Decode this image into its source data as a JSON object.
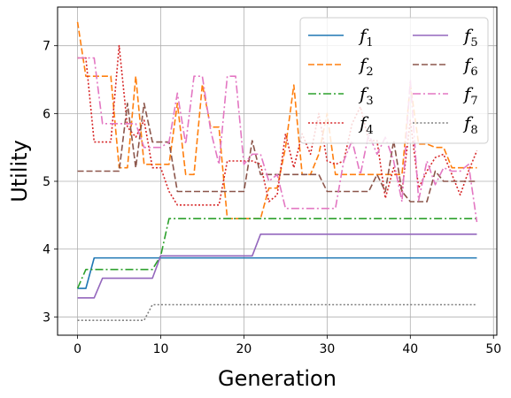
{
  "chart_data": {
    "type": "line",
    "title": "",
    "xlabel": "Generation",
    "ylabel": "Utility",
    "xlim": [
      -2.4,
      50.4
    ],
    "ylim": [
      2.73,
      7.57
    ],
    "xticks": [
      0,
      10,
      20,
      30,
      40,
      50
    ],
    "yticks": [
      3,
      4,
      5,
      6,
      7
    ],
    "grid": true,
    "legend": {
      "placement": "top-right",
      "columns": 2
    },
    "series": [
      {
        "name": "f",
        "sub": "1",
        "color": "#1f77b4",
        "dash": "solid",
        "points": [
          [
            0,
            3.42
          ],
          [
            1,
            3.42
          ],
          [
            2,
            3.87
          ],
          [
            48,
            3.87
          ]
        ]
      },
      {
        "name": "f",
        "sub": "2",
        "color": "#ff7f0e",
        "dash": "dashed",
        "points": [
          [
            0,
            7.35
          ],
          [
            1,
            6.55
          ],
          [
            4,
            6.55
          ],
          [
            5,
            5.2
          ],
          [
            6,
            5.2
          ],
          [
            7,
            6.55
          ],
          [
            8,
            5.25
          ],
          [
            11,
            5.25
          ],
          [
            12,
            6.15
          ],
          [
            13,
            5.1
          ],
          [
            14,
            5.1
          ],
          [
            15,
            6.43
          ],
          [
            16,
            5.8
          ],
          [
            17,
            5.8
          ],
          [
            18,
            4.45
          ],
          [
            22,
            4.45
          ],
          [
            23,
            4.9
          ],
          [
            24,
            4.9
          ],
          [
            25,
            5.5
          ],
          [
            26,
            6.42
          ],
          [
            27,
            5.1
          ],
          [
            28,
            5.1
          ],
          [
            29,
            5.4
          ],
          [
            30,
            6.0
          ],
          [
            31,
            5.1
          ],
          [
            39,
            5.1
          ],
          [
            40,
            6.43
          ],
          [
            41,
            5.55
          ],
          [
            42,
            5.55
          ],
          [
            43,
            5.5
          ],
          [
            44,
            5.5
          ],
          [
            45,
            5.2
          ],
          [
            48,
            5.2
          ]
        ]
      },
      {
        "name": "f",
        "sub": "3",
        "color": "#2ca02c",
        "dash": "dashdot",
        "points": [
          [
            0,
            3.42
          ],
          [
            1,
            3.7
          ],
          [
            9,
            3.7
          ],
          [
            10,
            3.9
          ],
          [
            11,
            4.45
          ],
          [
            48,
            4.45
          ]
        ]
      },
      {
        "name": "f",
        "sub": "4",
        "color": "#d62728",
        "dash": "dotted",
        "points": [
          [
            0,
            6.82
          ],
          [
            1,
            6.82
          ],
          [
            2,
            5.58
          ],
          [
            4,
            5.58
          ],
          [
            5,
            7.0
          ],
          [
            6,
            5.8
          ],
          [
            7,
            5.65
          ],
          [
            8,
            5.9
          ],
          [
            9,
            5.2
          ],
          [
            10,
            5.2
          ],
          [
            11,
            4.85
          ],
          [
            12,
            4.65
          ],
          [
            17,
            4.65
          ],
          [
            18,
            5.3
          ],
          [
            21,
            5.3
          ],
          [
            22,
            5.25
          ],
          [
            23,
            4.7
          ],
          [
            24,
            4.8
          ],
          [
            25,
            5.7
          ],
          [
            26,
            5.2
          ],
          [
            27,
            5.7
          ],
          [
            28,
            5.4
          ],
          [
            29,
            6.0
          ],
          [
            30,
            5.3
          ],
          [
            31,
            5.25
          ],
          [
            32,
            5.3
          ],
          [
            33,
            5.85
          ],
          [
            34,
            6.1
          ],
          [
            35,
            5.6
          ],
          [
            36,
            5.6
          ],
          [
            37,
            4.75
          ],
          [
            38,
            5.2
          ],
          [
            39,
            4.85
          ],
          [
            40,
            5.9
          ],
          [
            41,
            4.9
          ],
          [
            42,
            5.15
          ],
          [
            43,
            5.35
          ],
          [
            44,
            5.4
          ],
          [
            45,
            5.1
          ],
          [
            46,
            4.8
          ],
          [
            47,
            5.15
          ],
          [
            48,
            5.45
          ]
        ]
      },
      {
        "name": "f",
        "sub": "5",
        "color": "#9467bd",
        "dash": "solid",
        "points": [
          [
            0,
            3.28
          ],
          [
            2,
            3.28
          ],
          [
            3,
            3.57
          ],
          [
            9,
            3.57
          ],
          [
            10,
            3.9
          ],
          [
            21,
            3.9
          ],
          [
            22,
            4.22
          ],
          [
            48,
            4.22
          ]
        ]
      },
      {
        "name": "f",
        "sub": "6",
        "color": "#8c564b",
        "dash": "dashed",
        "points": [
          [
            0,
            5.15
          ],
          [
            5,
            5.15
          ],
          [
            6,
            6.15
          ],
          [
            7,
            5.2
          ],
          [
            8,
            6.15
          ],
          [
            9,
            5.58
          ],
          [
            11,
            5.58
          ],
          [
            12,
            4.85
          ],
          [
            20,
            4.85
          ],
          [
            21,
            5.6
          ],
          [
            22,
            5.1
          ],
          [
            29,
            5.1
          ],
          [
            30,
            4.85
          ],
          [
            35,
            4.85
          ],
          [
            36,
            5.1
          ],
          [
            37,
            4.85
          ],
          [
            38,
            5.6
          ],
          [
            39,
            4.85
          ],
          [
            40,
            4.7
          ],
          [
            42,
            4.7
          ],
          [
            43,
            5.15
          ],
          [
            44,
            5.0
          ],
          [
            48,
            5.0
          ]
        ]
      },
      {
        "name": "f",
        "sub": "7",
        "color": "#e377c2",
        "dash": "dashdot",
        "points": [
          [
            0,
            6.82
          ],
          [
            2,
            6.82
          ],
          [
            3,
            5.85
          ],
          [
            7,
            5.85
          ],
          [
            8,
            5.5
          ],
          [
            10,
            5.5
          ],
          [
            11,
            5.58
          ],
          [
            12,
            6.3
          ],
          [
            13,
            5.55
          ],
          [
            14,
            6.55
          ],
          [
            15,
            6.55
          ],
          [
            16,
            5.75
          ],
          [
            17,
            5.25
          ],
          [
            18,
            6.55
          ],
          [
            19,
            6.55
          ],
          [
            20,
            5.25
          ],
          [
            21,
            5.4
          ],
          [
            22,
            5.4
          ],
          [
            23,
            5.0
          ],
          [
            24,
            5.1
          ],
          [
            25,
            4.6
          ],
          [
            31,
            4.6
          ],
          [
            32,
            5.3
          ],
          [
            33,
            5.6
          ],
          [
            34,
            5.1
          ],
          [
            35,
            5.7
          ],
          [
            36,
            5.4
          ],
          [
            37,
            5.65
          ],
          [
            38,
            5.3
          ],
          [
            39,
            4.7
          ],
          [
            40,
            6.5
          ],
          [
            41,
            4.72
          ],
          [
            42,
            5.3
          ],
          [
            43,
            4.95
          ],
          [
            44,
            5.2
          ],
          [
            45,
            5.15
          ],
          [
            46,
            5.15
          ],
          [
            47,
            5.25
          ],
          [
            48,
            4.4
          ]
        ]
      },
      {
        "name": "f",
        "sub": "8",
        "color": "#7f7f7f",
        "dash": "dotted",
        "points": [
          [
            0,
            2.95
          ],
          [
            8,
            2.95
          ],
          [
            9,
            3.18
          ],
          [
            48,
            3.18
          ]
        ]
      }
    ]
  }
}
